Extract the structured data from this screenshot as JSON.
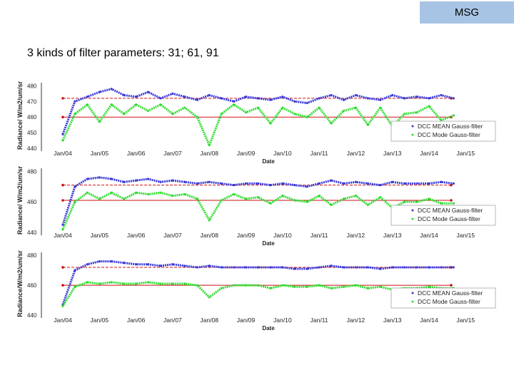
{
  "header": {
    "tag": "MSG"
  },
  "slide": {
    "title": "3 kinds of filter parameters: 31; 61, 91"
  },
  "chart_data": [
    {
      "type": "line",
      "ylabel": "Radiance/ W/m2/um/sr",
      "xlabel": "Date",
      "ylim": [
        440,
        482
      ],
      "yticks": [
        "440",
        "450",
        "460",
        "470",
        "480"
      ],
      "ytick_values": [
        440,
        450,
        460,
        470,
        480
      ],
      "x_ticks": [
        "Jan/04",
        "Jan/05",
        "Jan/06",
        "Jan/07",
        "Jan/08",
        "Jan/09",
        "Jan/10",
        "Jan/11",
        "Jan/12",
        "Jan/13",
        "Jan/14",
        "Jan/15"
      ],
      "x": [
        2004.0,
        2004.33,
        2004.67,
        2005.0,
        2005.33,
        2005.67,
        2006.0,
        2006.33,
        2006.67,
        2007.0,
        2007.33,
        2007.67,
        2008.0,
        2008.33,
        2008.67,
        2009.0,
        2009.33,
        2009.67,
        2010.0,
        2010.33,
        2010.67,
        2011.0,
        2011.33,
        2011.67,
        2012.0,
        2012.33,
        2012.67,
        2013.0,
        2013.33,
        2013.67,
        2014.0,
        2014.33,
        2014.67
      ],
      "legend": [
        "DCC MEAN Gauss-filter",
        "DCC Mode Gauss-filter"
      ],
      "legend_position": "bottom-right",
      "series": [
        {
          "name": "DCC MEAN Gauss-filter",
          "color": "#3a3ad8",
          "values": [
            449,
            470,
            473,
            476,
            478,
            474,
            473,
            476,
            472,
            475,
            473,
            471,
            474,
            472,
            470,
            473,
            472,
            471,
            473,
            470,
            469,
            472,
            474,
            471,
            474,
            472,
            471,
            474,
            472,
            473,
            472,
            474,
            472
          ]
        },
        {
          "name": "DCC Mode Gauss-filter",
          "color": "#33dd33",
          "values": [
            445,
            462,
            468,
            457,
            468,
            462,
            468,
            464,
            468,
            462,
            466,
            460,
            442,
            462,
            468,
            463,
            466,
            456,
            466,
            462,
            460,
            466,
            456,
            464,
            466,
            455,
            466,
            454,
            462,
            463,
            467,
            458,
            461
          ]
        }
      ],
      "reference_lines": [
        472,
        460
      ],
      "reference_color": "#cc1111"
    },
    {
      "type": "line",
      "ylabel": "Radiance/ W/m2/um/sr",
      "xlabel": "Date",
      "ylim": [
        440,
        482
      ],
      "yticks": [
        "440",
        "460",
        "480"
      ],
      "ytick_values": [
        440,
        460,
        480
      ],
      "x_ticks": [
        "Jan/04",
        "Jan/05",
        "Jan/06",
        "Jan/07",
        "Jan/08",
        "Jan/09",
        "Jan/10",
        "Jan/11",
        "Jan/12",
        "Jan/13",
        "Jan/14",
        "Jan/15"
      ],
      "x": [
        2004.0,
        2004.33,
        2004.67,
        2005.0,
        2005.33,
        2005.67,
        2006.0,
        2006.33,
        2006.67,
        2007.0,
        2007.33,
        2007.67,
        2008.0,
        2008.33,
        2008.67,
        2009.0,
        2009.33,
        2009.67,
        2010.0,
        2010.33,
        2010.67,
        2011.0,
        2011.33,
        2011.67,
        2012.0,
        2012.33,
        2012.67,
        2013.0,
        2013.33,
        2013.67,
        2014.0,
        2014.33,
        2014.67
      ],
      "legend": [
        "DCC MEAN Gauss-filter",
        "DCC Mode Gauss-filter"
      ],
      "legend_position": "bottom-right",
      "series": [
        {
          "name": "DCC MEAN Gauss-filter",
          "color": "#3a3ad8",
          "values": [
            445,
            470,
            475,
            476,
            475,
            473,
            474,
            475,
            473,
            474,
            473,
            472,
            473,
            472,
            471,
            472,
            472,
            471,
            472,
            471,
            470,
            472,
            474,
            472,
            473,
            472,
            471,
            473,
            472,
            472,
            472,
            473,
            472
          ]
        },
        {
          "name": "DCC Mode Gauss-filter",
          "color": "#33dd33",
          "values": [
            442,
            460,
            466,
            462,
            466,
            462,
            466,
            465,
            466,
            464,
            465,
            462,
            448,
            461,
            465,
            462,
            463,
            459,
            464,
            461,
            460,
            464,
            458,
            462,
            464,
            458,
            463,
            456,
            460,
            460,
            462,
            459,
            459
          ]
        }
      ],
      "reference_lines": [
        471,
        461
      ],
      "reference_color": "#cc1111"
    },
    {
      "type": "line",
      "ylabel": "Radiance/W/m2/um/sr",
      "xlabel": "Date",
      "ylim": [
        440,
        482
      ],
      "yticks": [
        "440",
        "460",
        "480"
      ],
      "ytick_values": [
        440,
        460,
        480
      ],
      "x_ticks": [
        "Jan/04",
        "Jan/05",
        "Jan/06",
        "Jan/07",
        "Jan/08",
        "Jan/09",
        "Jan/10",
        "Jan/11",
        "Jan/12",
        "Jan/13",
        "Jan/14",
        "Jan/15"
      ],
      "x": [
        2004.0,
        2004.33,
        2004.67,
        2005.0,
        2005.33,
        2005.67,
        2006.0,
        2006.33,
        2006.67,
        2007.0,
        2007.33,
        2007.67,
        2008.0,
        2008.33,
        2008.67,
        2009.0,
        2009.33,
        2009.67,
        2010.0,
        2010.33,
        2010.67,
        2011.0,
        2011.33,
        2011.67,
        2012.0,
        2012.33,
        2012.67,
        2013.0,
        2013.33,
        2013.67,
        2014.0,
        2014.33,
        2014.67
      ],
      "legend": [
        "DCC MEAN Gauss-filter",
        "DCC Mode Gauss-filter"
      ],
      "legend_position": "bottom-right",
      "series": [
        {
          "name": "DCC MEAN Gauss-filter",
          "color": "#3a3ad8",
          "values": [
            447,
            470,
            474,
            476,
            476,
            475,
            474,
            474,
            473,
            474,
            473,
            472,
            473,
            472,
            472,
            472,
            472,
            472,
            472,
            471,
            471,
            472,
            473,
            472,
            472,
            472,
            471,
            472,
            472,
            472,
            472,
            472,
            472
          ]
        },
        {
          "name": "DCC Mode Gauss-filter",
          "color": "#33dd33",
          "values": [
            446,
            459,
            462,
            461,
            462,
            461,
            461,
            462,
            461,
            461,
            461,
            460,
            452,
            458,
            460,
            460,
            460,
            458,
            460,
            459,
            459,
            460,
            458,
            459,
            460,
            458,
            459,
            457,
            458,
            458,
            459,
            458,
            458
          ]
        }
      ],
      "reference_lines": [
        472,
        460
      ],
      "reference_color": "#cc1111"
    }
  ]
}
